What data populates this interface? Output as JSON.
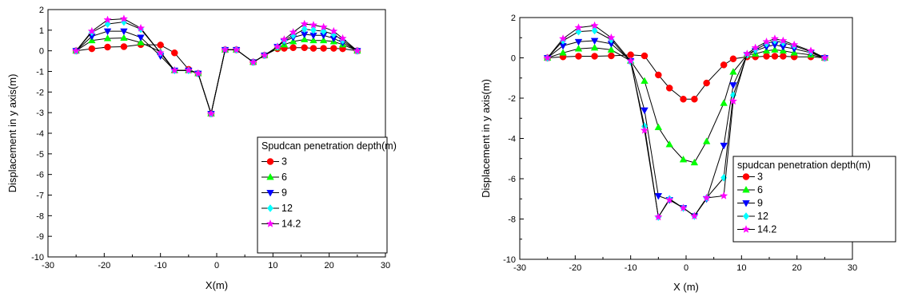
{
  "chart_data": [
    {
      "type": "line",
      "xlabel": "X(m)",
      "ylabel": "Displacement in y axis(m)",
      "xlim": [
        -30,
        30
      ],
      "ylim": [
        -10,
        2
      ],
      "xticks": [
        -30,
        -20,
        -10,
        0,
        10,
        20,
        30
      ],
      "yticks": [
        -10,
        -9,
        -8,
        -7,
        -6,
        -5,
        -4,
        -3,
        -2,
        -1,
        0,
        1,
        2
      ],
      "grid": false,
      "legend_title": "Spudcan penetration depth(m)",
      "legend_position": "lower-right",
      "x": [
        -25,
        -22.2,
        -19.4,
        -16.5,
        -13.5,
        -10,
        -7.5,
        -5,
        -3.3,
        -1,
        1.5,
        3.5,
        6.5,
        8.5,
        10.8,
        12,
        13.6,
        15.6,
        17.2,
        19,
        20.8,
        22.4,
        25
      ],
      "series": [
        {
          "name": "3",
          "color": "#ff0000",
          "marker": "circle",
          "values": [
            0,
            0.1,
            0.18,
            0.2,
            0.3,
            0.28,
            -0.1,
            -0.9,
            -1.1,
            -3.05,
            0.05,
            0.05,
            -0.55,
            -0.22,
            0.1,
            0.12,
            0.15,
            0.15,
            0.12,
            0.12,
            0.12,
            0.1,
            0
          ]
        },
        {
          "name": "6",
          "color": "#00ff00",
          "marker": "triangle-up",
          "values": [
            0,
            0.5,
            0.6,
            0.62,
            0.4,
            -0.05,
            -0.95,
            -0.95,
            -1.1,
            -3.05,
            0.05,
            0.05,
            -0.55,
            -0.22,
            0.15,
            0.3,
            0.45,
            0.55,
            0.5,
            0.5,
            0.45,
            0.3,
            0
          ]
        },
        {
          "name": "9",
          "color": "#0000ff",
          "marker": "triangle-down",
          "values": [
            0,
            0.7,
            0.95,
            0.95,
            0.65,
            -0.25,
            -0.95,
            -0.95,
            -1.1,
            -3.05,
            0.05,
            0.05,
            -0.55,
            -0.22,
            0.2,
            0.45,
            0.65,
            0.8,
            0.75,
            0.75,
            0.6,
            0.4,
            0
          ]
        },
        {
          "name": "12",
          "color": "#00ffff",
          "marker": "diamond",
          "values": [
            0,
            0.9,
            1.3,
            1.4,
            1.05,
            -0.1,
            -0.95,
            -0.95,
            -1.1,
            -3.05,
            0.05,
            0.05,
            -0.55,
            -0.22,
            0.2,
            0.5,
            0.75,
            1.05,
            1.0,
            0.95,
            0.8,
            0.5,
            0
          ]
        },
        {
          "name": "14.2",
          "color": "#ff00ff",
          "marker": "star",
          "values": [
            0,
            0.95,
            1.5,
            1.55,
            1.1,
            -0.1,
            -0.95,
            -0.95,
            -1.1,
            -3.05,
            0.05,
            0.05,
            -0.55,
            -0.22,
            0.2,
            0.55,
            0.9,
            1.3,
            1.25,
            1.15,
            0.95,
            0.6,
            0
          ]
        }
      ]
    },
    {
      "type": "line",
      "xlabel": "X (m)",
      "ylabel": "Displacement in y axis(m)",
      "xlim": [
        -30,
        30
      ],
      "ylim": [
        -10,
        2
      ],
      "xticks": [
        -30,
        -20,
        -10,
        0,
        10,
        20,
        30
      ],
      "yticks": [
        -10,
        -8,
        -6,
        -4,
        -2,
        0,
        2
      ],
      "grid": false,
      "legend_title": "spudcan penetration depth(m)",
      "legend_position": "lower-right",
      "x": [
        -25,
        -22.2,
        -19.4,
        -16.5,
        -13.5,
        -10,
        -7.5,
        -5,
        -3,
        -0.5,
        1.5,
        3.7,
        6.8,
        8.5,
        11,
        12.5,
        14.5,
        16,
        17.5,
        19.5,
        22.5,
        25
      ],
      "series": [
        {
          "name": "3",
          "color": "#ff0000",
          "marker": "circle",
          "values": [
            0,
            0.05,
            0.08,
            0.08,
            0.1,
            0.15,
            0.1,
            -0.85,
            -1.5,
            -2.05,
            -2.05,
            -1.25,
            -0.35,
            -0.05,
            0.05,
            0.05,
            0.08,
            0.08,
            0.08,
            0.05,
            0.05,
            0
          ]
        },
        {
          "name": "6",
          "color": "#00ff00",
          "marker": "triangle-up",
          "values": [
            0,
            0.25,
            0.45,
            0.5,
            0.4,
            -0.15,
            -1.15,
            -3.45,
            -4.3,
            -5.05,
            -5.2,
            -4.15,
            -2.25,
            -0.7,
            0.15,
            0.2,
            0.35,
            0.4,
            0.35,
            0.25,
            0.15,
            0
          ]
        },
        {
          "name": "9",
          "color": "#0000ff",
          "marker": "triangle-down",
          "values": [
            0,
            0.6,
            0.8,
            0.85,
            0.7,
            -0.15,
            -2.6,
            -6.85,
            -7.05,
            -7.45,
            -7.85,
            -7.0,
            -4.35,
            -1.35,
            0.15,
            0.35,
            0.55,
            0.65,
            0.55,
            0.45,
            0.25,
            0
          ]
        },
        {
          "name": "12",
          "color": "#00ffff",
          "marker": "diamond",
          "values": [
            0,
            0.85,
            1.3,
            1.35,
            0.9,
            -0.2,
            -3.4,
            -7.9,
            -7.0,
            -7.45,
            -7.85,
            -6.95,
            -5.95,
            -1.85,
            0.15,
            0.4,
            0.7,
            0.85,
            0.75,
            0.6,
            0.3,
            0
          ]
        },
        {
          "name": "14.2",
          "color": "#ff00ff",
          "marker": "star",
          "values": [
            0,
            0.95,
            1.5,
            1.6,
            1.0,
            -0.15,
            -3.6,
            -7.9,
            -7.05,
            -7.45,
            -7.85,
            -6.95,
            -6.85,
            -2.15,
            0.2,
            0.5,
            0.8,
            0.95,
            0.85,
            0.65,
            0.35,
            0
          ]
        }
      ]
    }
  ]
}
